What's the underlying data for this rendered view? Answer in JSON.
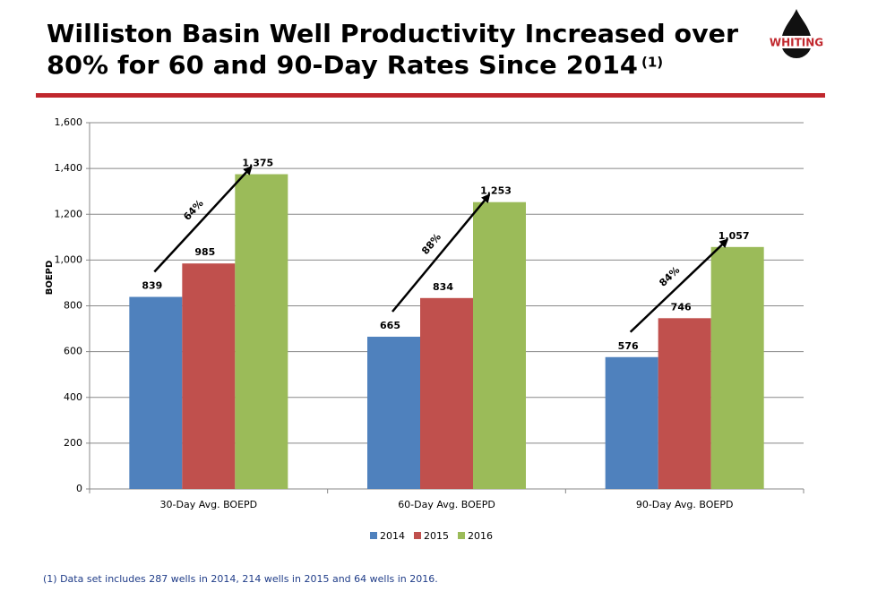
{
  "logo": "WHITING",
  "chart_data": {
    "type": "bar",
    "title": [
      "Williston Basin Well Productivity Increased over",
      "80% for 60 and 90-Day Rates Since 2014"
    ],
    "title_note": "(1)",
    "ylabel": "BOEPD",
    "categories": [
      "30-Day Avg. BOEPD",
      "60-Day Avg. BOEPD",
      "90-Day Avg. BOEPD"
    ],
    "series": [
      {
        "name": "2014",
        "color": "#4f81bd",
        "values": [
          839,
          665,
          576
        ]
      },
      {
        "name": "2015",
        "color": "#c0504d",
        "values": [
          985,
          834,
          746
        ]
      },
      {
        "name": "2016",
        "color": "#9bbb59",
        "values": [
          1375,
          1253,
          1057
        ],
        "value_labels": [
          "1,375",
          "1,253",
          "1,057"
        ]
      }
    ],
    "annotations": [
      "64%",
      "88%",
      "84%"
    ],
    "ylim": [
      0,
      1600
    ],
    "yticks": [
      0,
      200,
      400,
      600,
      800,
      {
        "value": 1000,
        "label": "1,000"
      },
      {
        "value": 1200,
        "label": "1,200"
      },
      {
        "value": 1400,
        "label": "1,400"
      },
      {
        "value": 1600,
        "label": "1,600"
      }
    ],
    "grid": true,
    "legend": "bottom",
    "footnote": "(1) Data set includes 287 wells in 2014, 214 wells in 2015 and 64 wells in 2016."
  }
}
